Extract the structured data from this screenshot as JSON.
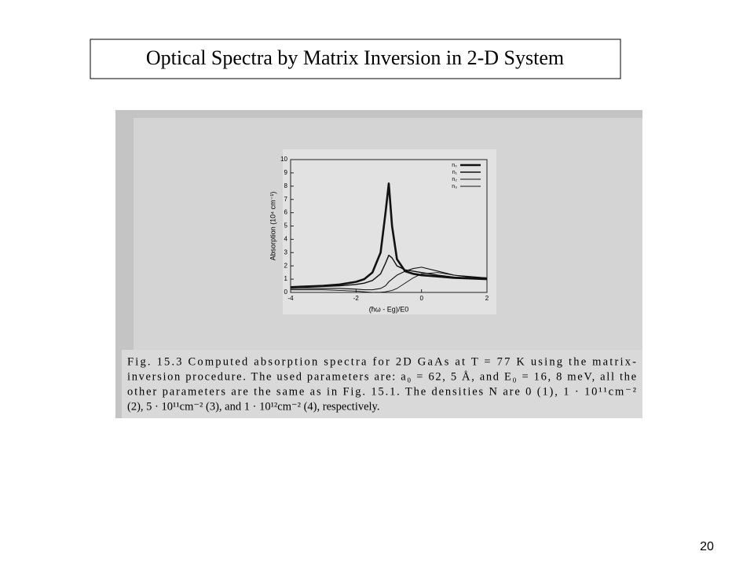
{
  "title": "Optical Spectra by Matrix Inversion in 2-D System",
  "page_number": "20",
  "chart_data": {
    "type": "line",
    "x_label": "(ħω - Eg)/E0",
    "y_label": "Absorption (10⁴ cm⁻¹)",
    "x": [
      -4,
      -3.5,
      -3,
      -2.5,
      -2,
      -1.75,
      -1.5,
      -1.25,
      -1.1,
      -1,
      -0.9,
      -0.75,
      -0.5,
      -0.25,
      0,
      0.5,
      1,
      1.5,
      2
    ],
    "series": [
      {
        "name": "n₀",
        "color": "#111111",
        "values": [
          0.4,
          0.45,
          0.5,
          0.6,
          0.8,
          1.0,
          1.5,
          3,
          6,
          8.2,
          5,
          2.5,
          1.6,
          1.4,
          1.3,
          1.2,
          1.1,
          1.05,
          1.0
        ]
      },
      {
        "name": "n₁",
        "color": "#111111",
        "values": [
          0.4,
          0.4,
          0.45,
          0.5,
          0.6,
          0.7,
          0.9,
          1.4,
          2.2,
          2.8,
          2.6,
          2,
          1.7,
          1.6,
          1.5,
          1.3,
          1.15,
          1.1,
          1.05
        ]
      },
      {
        "name": "n₂",
        "color": "#111111",
        "values": [
          0.3,
          0.3,
          0.3,
          0.3,
          0.25,
          0.2,
          0.2,
          0.3,
          0.5,
          0.8,
          1.0,
          1.3,
          1.6,
          1.8,
          1.9,
          1.6,
          1.3,
          1.15,
          1.1
        ]
      },
      {
        "name": "n₃",
        "color": "#111111",
        "values": [
          0.2,
          0.2,
          0.2,
          0.15,
          0.1,
          0.05,
          0,
          0.02,
          0.05,
          0.1,
          0.15,
          0.3,
          0.7,
          1.1,
          1.4,
          1.5,
          1.3,
          1.2,
          1.1
        ]
      }
    ],
    "xlim": [
      -4,
      2
    ],
    "ylim": [
      0,
      10
    ],
    "xticks": [
      -4,
      -2,
      0,
      2
    ],
    "yticks": [
      0,
      1,
      2,
      3,
      4,
      5,
      6,
      7,
      8,
      9,
      10
    ],
    "legend": "upper right"
  },
  "caption": [
    "Fig. 15.3   Computed absorption spectra for 2D GaAs at T = 77 K using the matrix-",
    "inversion procedure. The used parameters are: a₀ = 62, 5 Å, and E₀ = 16, 8 meV, all the",
    "other parameters are the same as in Fig. 15.1. The densities N are 0 (1), 1 · 10¹¹cm⁻²",
    "(2), 5 · 10¹¹cm⁻² (3), and 1 · 10¹²cm⁻² (4), respectively."
  ]
}
